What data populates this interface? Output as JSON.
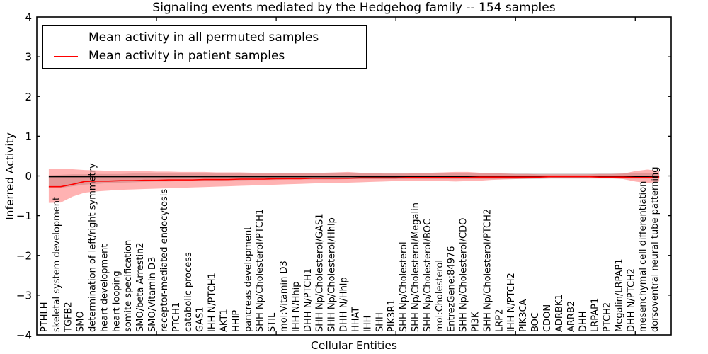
{
  "title": "Signaling events mediated by the Hedgehog family -- 154 samples",
  "axes": {
    "ylabel": "Inferred Activity",
    "xlabel": "Cellular Entities",
    "yticks": [
      4,
      3,
      2,
      1,
      0,
      -1,
      -2,
      -3,
      -4
    ],
    "ytick_labels": [
      "4",
      "3",
      "2",
      "1",
      "0",
      "−1",
      "−2",
      "−3",
      "−4"
    ],
    "xtick_interval": 10
  },
  "legend": [
    {
      "label": "Mean activity in all permuted samples",
      "color": "#000000"
    },
    {
      "label": "Mean activity in patient samples",
      "color": "#ff0000"
    }
  ],
  "colors": {
    "patient_line": "#ff0000",
    "permuted_line": "#000000",
    "patient_band": "rgba(255,0,0,0.30)",
    "permuted_band": "rgba(100,100,100,0.25)",
    "zero_line": "#000000"
  },
  "chart_data": {
    "type": "line",
    "title": "Signaling events mediated by the Hedgehog family -- 154 samples",
    "xlabel": "Cellular Entities",
    "ylabel": "Inferred Activity",
    "ylim": [
      -4,
      4
    ],
    "baseline": 0,
    "legend_position": "upper left",
    "grid": false,
    "categories": [
      "PTHLH",
      "skeletal system development",
      "TGFB2",
      "SMO",
      "determination of left/right symmetry",
      "heart development",
      "heart looping",
      "somite specification",
      "SMO/beta Arrestin2",
      "SMO/Vitamin D3",
      "receptor-mediated endocytosis",
      "PTCH1",
      "catabolic process",
      "GAS1",
      "IHH N/PTCH1",
      "AKT1",
      "HHIP",
      "pancreas development",
      "SHH Np/Cholesterol/PTCH1",
      "STIL",
      "mol:Vitamin D3",
      "IHH N/Hhip",
      "DHH N/PTCH1",
      "SHH Np/Cholesterol/GAS1",
      "SHH Np/Cholesterol/Hhip",
      "DHH N/Hhip",
      "HHAT",
      "IHH",
      "SHH",
      "PIK3R1",
      "SHH Np/Cholesterol",
      "SHH Np/Cholesterol/Megalin",
      "SHH Np/Cholesterol/BOC",
      "mol:Cholesterol",
      "EntrezGene:84976",
      "SHH Np/Cholesterol/CDO",
      "PI3K",
      "SHH Np/Cholesterol/PTCH2",
      "LRP2",
      "IHH N/PTCH2",
      "PIK3CA",
      "BOC",
      "CDON",
      "ADRBK1",
      "ARRB2",
      "DHH",
      "LRPAP1",
      "PTCH2",
      "Megalin/LRPAP1",
      "DHH N/PTCH2",
      "mesenchymal cell differentiation",
      "dorsoventral neural tube patterning"
    ],
    "series": [
      {
        "name": "Mean activity in all permuted samples",
        "values": [
          -0.02,
          -0.02,
          -0.02,
          -0.02,
          -0.02,
          -0.02,
          -0.02,
          -0.02,
          -0.02,
          -0.02,
          -0.02,
          -0.02,
          -0.02,
          -0.02,
          -0.02,
          -0.02,
          -0.02,
          -0.02,
          -0.02,
          -0.02,
          -0.02,
          -0.02,
          -0.02,
          -0.02,
          -0.02,
          -0.02,
          -0.02,
          -0.02,
          -0.02,
          -0.02,
          -0.02,
          -0.02,
          -0.02,
          -0.02,
          -0.02,
          -0.02,
          -0.02,
          -0.02,
          -0.02,
          -0.02,
          -0.02,
          -0.02,
          -0.02,
          -0.02,
          -0.02,
          -0.02,
          -0.02,
          -0.02,
          -0.02,
          -0.02,
          -0.02,
          -0.02
        ]
      },
      {
        "name": "Mean activity in patient samples",
        "values": [
          -0.27,
          -0.27,
          -0.21,
          -0.14,
          -0.13,
          -0.13,
          -0.12,
          -0.12,
          -0.11,
          -0.11,
          -0.1,
          -0.1,
          -0.1,
          -0.09,
          -0.09,
          -0.09,
          -0.08,
          -0.08,
          -0.08,
          -0.07,
          -0.07,
          -0.07,
          -0.06,
          -0.06,
          -0.06,
          -0.06,
          -0.05,
          -0.05,
          -0.05,
          -0.05,
          -0.04,
          -0.04,
          -0.04,
          -0.04,
          -0.04,
          -0.04,
          -0.03,
          -0.03,
          -0.03,
          -0.03,
          -0.03,
          -0.03,
          -0.02,
          -0.02,
          -0.02,
          -0.02,
          -0.03,
          -0.03,
          -0.03,
          -0.04,
          -0.04,
          -0.03
        ]
      },
      {
        "name": "patient_band_upper",
        "values": [
          0.18,
          0.18,
          0.17,
          0.15,
          0.14,
          0.13,
          0.13,
          0.12,
          0.12,
          0.11,
          0.11,
          0.1,
          0.1,
          0.1,
          0.09,
          0.09,
          0.09,
          0.08,
          0.08,
          0.08,
          0.08,
          0.08,
          0.07,
          0.08,
          0.09,
          0.1,
          0.08,
          0.07,
          0.06,
          0.06,
          0.06,
          0.07,
          0.08,
          0.09,
          0.1,
          0.1,
          0.08,
          0.07,
          0.06,
          0.05,
          0.05,
          0.04,
          0.04,
          0.04,
          0.04,
          0.04,
          0.05,
          0.05,
          0.06,
          0.12,
          0.16,
          0.13
        ]
      },
      {
        "name": "patient_band_lower",
        "values": [
          -0.68,
          -0.67,
          -0.52,
          -0.42,
          -0.39,
          -0.37,
          -0.35,
          -0.34,
          -0.33,
          -0.32,
          -0.31,
          -0.3,
          -0.29,
          -0.28,
          -0.27,
          -0.26,
          -0.25,
          -0.24,
          -0.23,
          -0.22,
          -0.21,
          -0.2,
          -0.19,
          -0.18,
          -0.18,
          -0.17,
          -0.16,
          -0.15,
          -0.14,
          -0.13,
          -0.12,
          -0.12,
          -0.12,
          -0.13,
          -0.14,
          -0.13,
          -0.12,
          -0.1,
          -0.09,
          -0.08,
          -0.07,
          -0.06,
          -0.06,
          -0.05,
          -0.05,
          -0.05,
          -0.06,
          -0.06,
          -0.08,
          -0.14,
          -0.18,
          -0.14
        ]
      },
      {
        "name": "permuted_band_upper",
        "values": [
          0.02,
          0.03,
          0.04,
          0.04,
          0.05,
          0.05,
          0.05,
          0.06,
          0.06,
          0.06,
          0.06,
          0.06,
          0.06,
          0.06,
          0.06,
          0.06,
          0.06,
          0.06,
          0.06,
          0.06,
          0.07,
          0.07,
          0.07,
          0.07,
          0.07,
          0.07,
          0.07,
          0.07,
          0.07,
          0.07,
          0.07,
          0.07,
          0.07,
          0.07,
          0.07,
          0.07,
          0.07,
          0.07,
          0.07,
          0.07,
          0.07,
          0.07,
          0.07,
          0.07,
          0.07,
          0.07,
          0.07,
          0.07,
          0.07,
          0.07,
          0.07,
          0.07
        ]
      },
      {
        "name": "permuted_band_lower",
        "values": [
          -0.31,
          -0.3,
          -0.26,
          -0.22,
          -0.2,
          -0.18,
          -0.17,
          -0.16,
          -0.15,
          -0.14,
          -0.14,
          -0.13,
          -0.13,
          -0.12,
          -0.12,
          -0.11,
          -0.11,
          -0.1,
          -0.1,
          -0.1,
          -0.09,
          -0.09,
          -0.09,
          -0.09,
          -0.09,
          -0.08,
          -0.08,
          -0.08,
          -0.08,
          -0.08,
          -0.08,
          -0.08,
          -0.08,
          -0.08,
          -0.08,
          -0.08,
          -0.08,
          -0.08,
          -0.08,
          -0.08,
          -0.08,
          -0.08,
          -0.07,
          -0.07,
          -0.07,
          -0.07,
          -0.07,
          -0.07,
          -0.07,
          -0.07,
          -0.07,
          -0.07
        ]
      }
    ]
  }
}
